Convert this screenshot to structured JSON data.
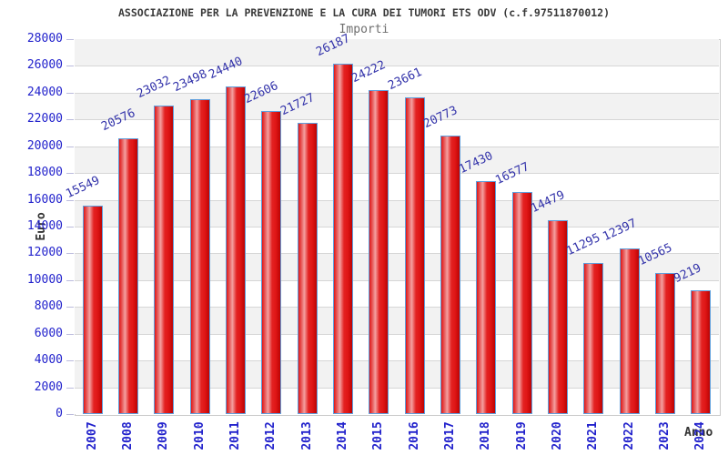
{
  "header": {
    "title": "ASSOCIAZIONE PER LA PREVENZIONE E LA CURA DEI TUMORI ETS ODV (c.f.97511870012)",
    "subtitle": "Importi"
  },
  "chart_data": {
    "type": "bar",
    "title": "ASSOCIAZIONE PER LA PREVENZIONE E LA CURA DEI TUMORI ETS ODV (c.f.97511870012)",
    "subtitle": "Importi",
    "xlabel": "Anno",
    "ylabel": "Euro",
    "categories": [
      "2007",
      "2008",
      "2009",
      "2010",
      "2011",
      "2012",
      "2013",
      "2014",
      "2015",
      "2016",
      "2017",
      "2018",
      "2019",
      "2020",
      "2021",
      "2022",
      "2023",
      "2024"
    ],
    "values": [
      15549,
      20576,
      23032,
      23498,
      24440,
      22606,
      21727,
      26187,
      24222,
      23661,
      20773,
      17430,
      16577,
      14479,
      11295,
      12397,
      10565,
      9219
    ],
    "ylim": [
      0,
      28000
    ],
    "ytick_step": 2000,
    "grid": true,
    "legend": "none",
    "colors": {
      "axis_tick_label": "#2222cc",
      "value_label": "#3333aa",
      "bar_border": "#5e9fdd",
      "bar_red_dark": "#bb0404",
      "bar_red": "#e01616",
      "bar_highlight": "#f4a0a0",
      "band_fill": "#f2f2f2",
      "grid_line": "#d6d6d6",
      "axis_tick_mark": "#bbbbdd"
    }
  }
}
